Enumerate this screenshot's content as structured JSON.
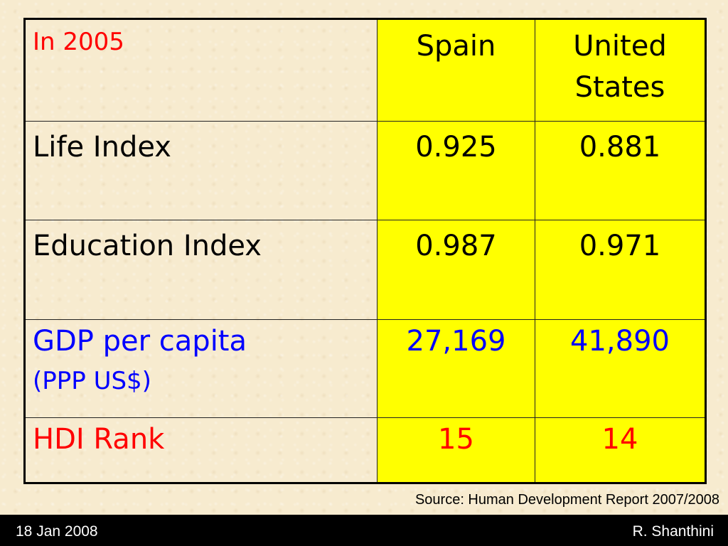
{
  "table": {
    "corner_label": "In 2005",
    "columns": [
      "Spain",
      "United States"
    ],
    "rows": [
      {
        "label": "Life Index",
        "sub_label": "",
        "values": [
          "0.925",
          "0.881"
        ],
        "color": "#000000"
      },
      {
        "label": "Education Index",
        "sub_label": "",
        "values": [
          "0.987",
          "0.971"
        ],
        "color": "#000000"
      },
      {
        "label": "GDP per capita",
        "sub_label": "(PPP US$)",
        "values": [
          "27,169",
          "41,890"
        ],
        "color": "#0000ff"
      },
      {
        "label": "HDI Rank",
        "sub_label": "",
        "values": [
          "15",
          "14"
        ],
        "color": "#ff0000"
      }
    ]
  },
  "source": "Source: Human Development Report 2007/2008",
  "footer": {
    "date": "18 Jan 2008",
    "author": "R. Shanthini"
  },
  "colors": {
    "value_cell_bg": "#ffff00",
    "background": "#f7ebcf",
    "footer_bg": "#000000"
  }
}
